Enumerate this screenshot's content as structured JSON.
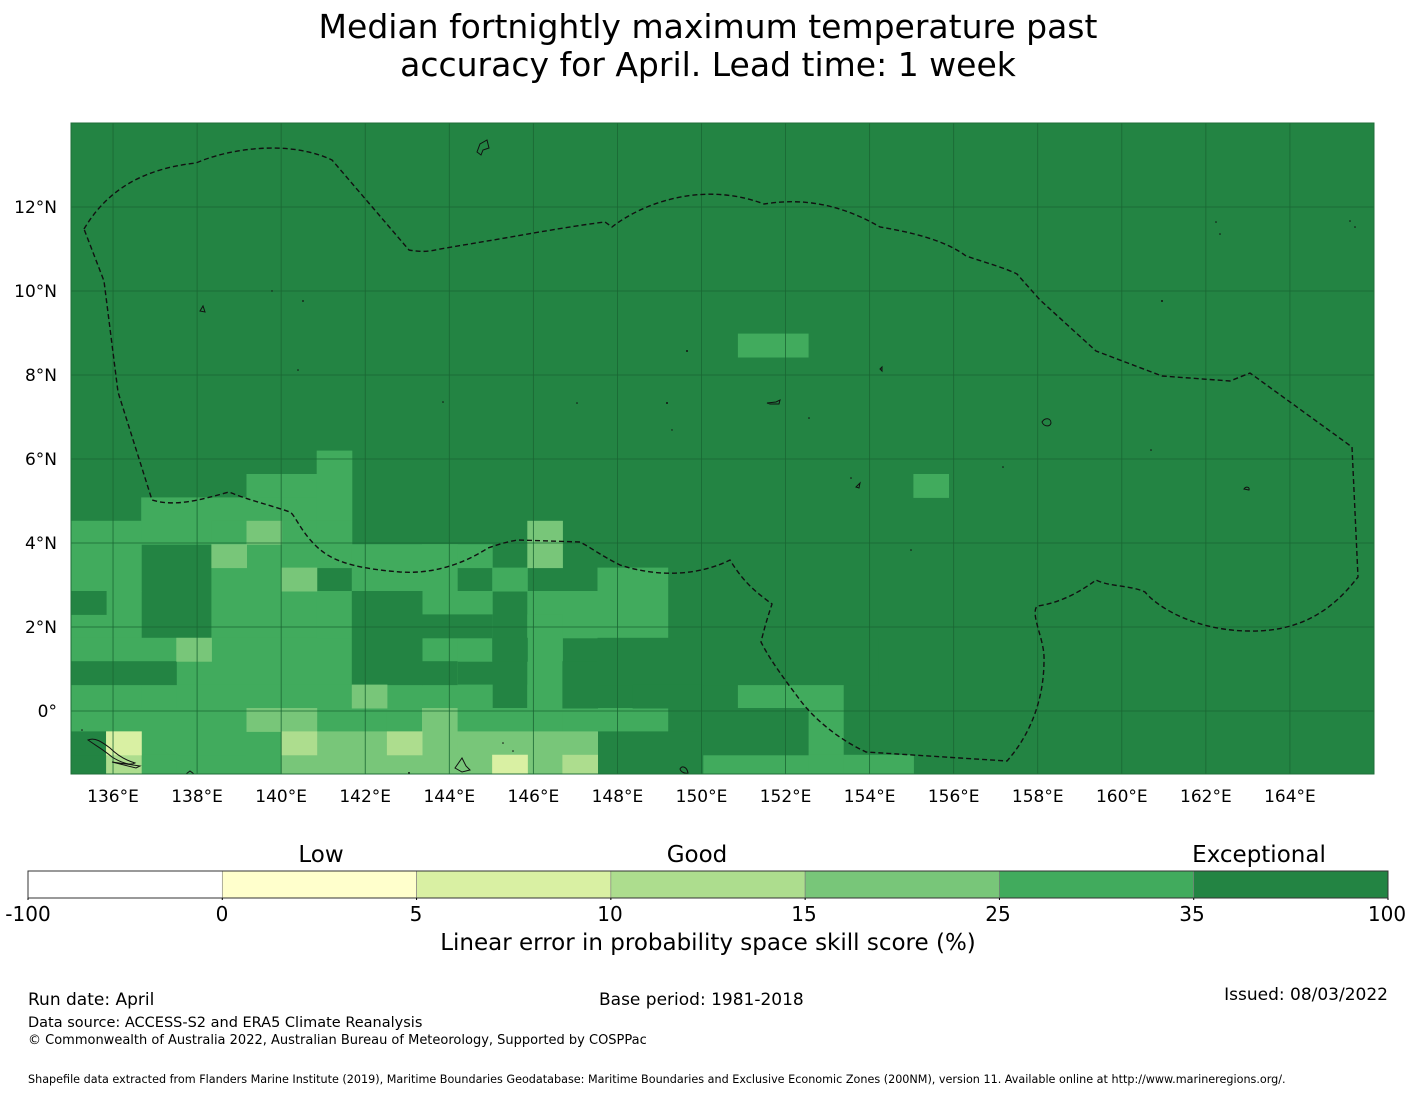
{
  "title_line1": "Median fortnightly maximum temperature past",
  "title_line2": "accuracy for April. Lead time: 1 week",
  "map": {
    "lon_range": [
      135,
      166
    ],
    "lat_range": [
      -1.5,
      14
    ],
    "lon_ticks": [
      "136°E",
      "138°E",
      "140°E",
      "142°E",
      "144°E",
      "146°E",
      "148°E",
      "150°E",
      "152°E",
      "154°E",
      "156°E",
      "158°E",
      "160°E",
      "162°E",
      "164°E"
    ],
    "lat_ticks": [
      "12°N",
      "10°N",
      "8°N",
      "6°N",
      "4°N",
      "2°N",
      "0°"
    ],
    "background_category": "35 to 100"
  },
  "colorbar": {
    "category_words": [
      "Low",
      "Good",
      "Exceptional"
    ],
    "tick_labels": [
      "-100",
      "0",
      "5",
      "10",
      "15",
      "25",
      "35",
      "100"
    ],
    "colors": [
      "#ffffff",
      "#ffffcc",
      "#d9f0a3",
      "#addd8e",
      "#78c679",
      "#41ab5d",
      "#238443"
    ],
    "label": "Linear error in probability space skill score (%)"
  },
  "footer": {
    "run_date": "Run date: April",
    "base_period": "Base period: 1981-2018",
    "issued": "Issued: 08/03/2022",
    "data_source": "Data source: ACCESS-S2 and ERA5 Climate Reanalysis",
    "copyright": "© Commonwealth of Australia 2022, Australian Bureau of Meteorology, Supported by COSPPac",
    "shapefile": "Shapefile data extracted from Flanders Marine Institute (2019), Maritime Boundaries Geodatabase: Maritime Boundaries and Exclusive Economic Zones (200NM), version 11. Available online at http://www.marineregions.org/."
  }
}
